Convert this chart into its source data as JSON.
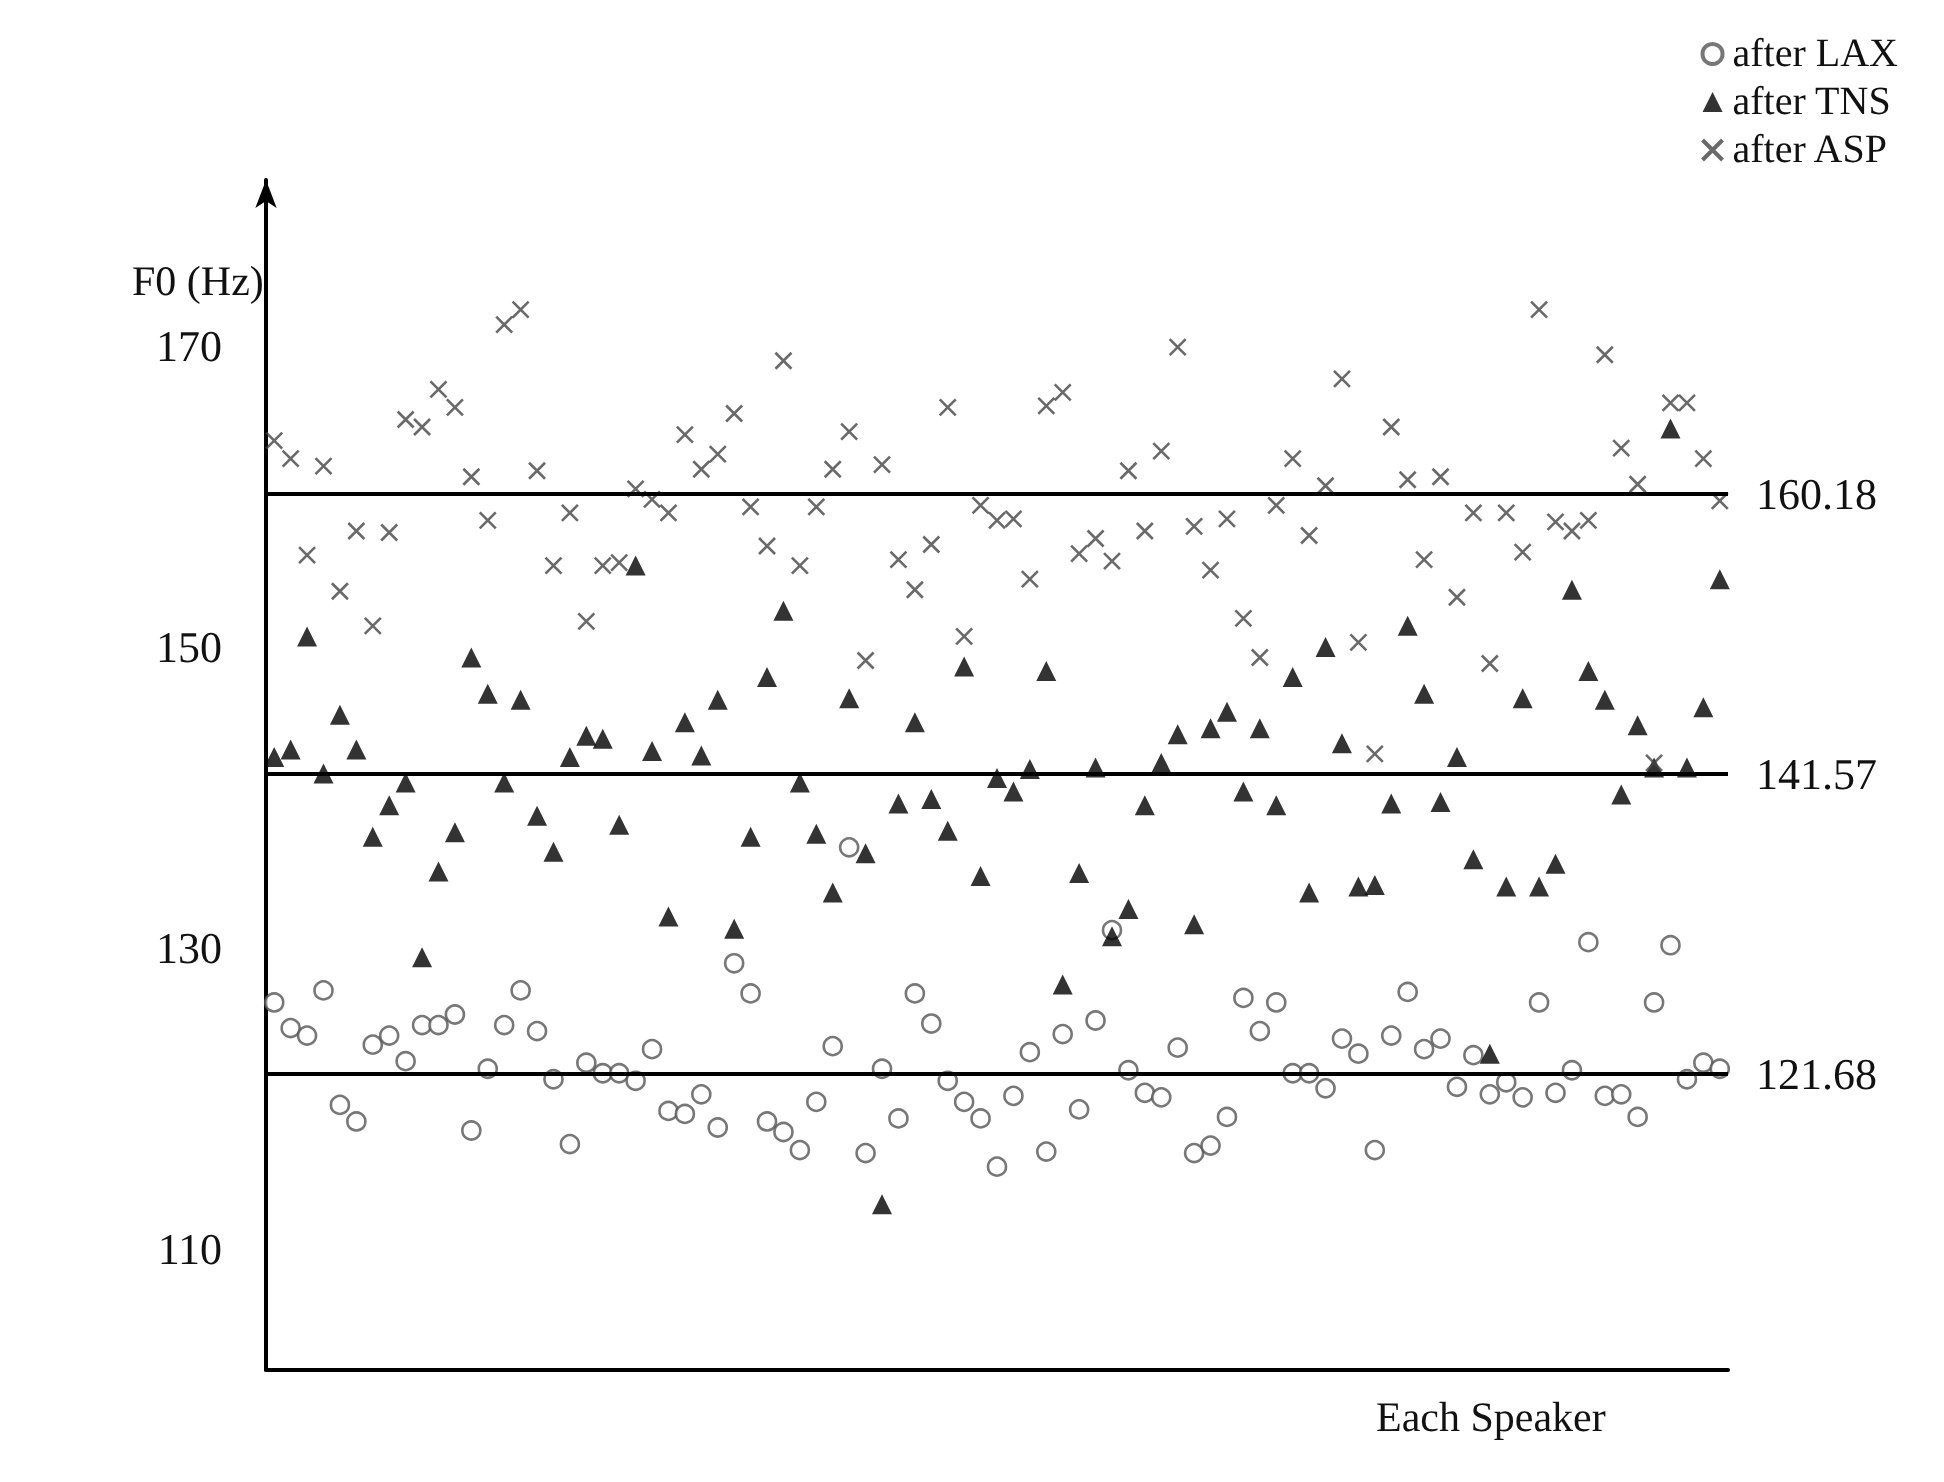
{
  "chart_data": {
    "type": "scatter",
    "xlabel": "Each Speaker",
    "ylabel": "F0 (Hz)",
    "categories": [
      null,
      null,
      null,
      null,
      null,
      null,
      null,
      null,
      null,
      null,
      null,
      null,
      null,
      null,
      null,
      null,
      null,
      null,
      null,
      null,
      null,
      null,
      null,
      null,
      null,
      null,
      null,
      null,
      null,
      null,
      null,
      null,
      null,
      null,
      null,
      null,
      null,
      null,
      null,
      null,
      null,
      null,
      null,
      null,
      null,
      null,
      null,
      null,
      null,
      null,
      null,
      null,
      null,
      null,
      null,
      null,
      null,
      null,
      null,
      null,
      null,
      null,
      null,
      null,
      null,
      null,
      null,
      null,
      null,
      null,
      null,
      null,
      null,
      null,
      null,
      null,
      null,
      null,
      null,
      null,
      null,
      null,
      null,
      null,
      null,
      null,
      null,
      null,
      null
    ],
    "series": [
      {
        "name": "after LAX",
        "color": "#555555",
        "marker": "circle",
        "values": [
          126.4,
          124.7,
          124.2,
          127.2,
          119.6,
          118.5,
          123.6,
          124.2,
          122.5,
          124.9,
          124.9,
          125.6,
          117.9,
          122.0,
          124.9,
          127.2,
          124.5,
          121.3,
          117.0,
          122.4,
          121.7,
          121.7,
          121.2,
          123.3,
          119.2,
          119.0,
          120.3,
          118.1,
          129.0,
          127.0,
          118.5,
          117.8,
          116.6,
          119.8,
          123.5,
          136.7,
          116.4,
          122.0,
          118.7,
          127.0,
          125.0,
          121.2,
          119.8,
          118.7,
          115.5,
          120.2,
          123.1,
          116.5,
          124.3,
          119.3,
          125.2,
          131.2,
          121.9,
          120.4,
          120.1,
          123.4,
          116.4,
          116.9,
          118.8,
          126.7,
          124.5,
          126.4,
          121.7,
          121.7,
          120.7,
          124.0,
          123.0,
          116.6,
          124.2,
          127.1,
          123.3,
          124.0,
          120.8,
          122.9,
          120.3,
          121.1,
          120.1,
          126.4,
          120.4,
          121.9,
          130.4,
          120.2,
          120.3,
          118.8,
          126.4,
          130.2,
          121.3,
          122.4,
          122.0
        ]
      },
      {
        "name": "after TNS",
        "color": "#000000",
        "marker": "triangle",
        "values": [
          142.7,
          143.2,
          150.7,
          141.6,
          145.5,
          143.2,
          137.4,
          139.5,
          141.0,
          129.4,
          135.1,
          137.7,
          149.3,
          146.9,
          141.0,
          146.5,
          138.8,
          136.4,
          142.7,
          144.1,
          143.9,
          138.2,
          155.4,
          143.1,
          132.1,
          145.0,
          142.8,
          146.5,
          131.3,
          137.4,
          148.0,
          152.4,
          141.0,
          137.6,
          133.7,
          146.6,
          136.3,
          113.0,
          139.6,
          145.0,
          139.9,
          137.8,
          148.7,
          134.8,
          141.3,
          140.4,
          141.9,
          148.4,
          127.6,
          135.0,
          142.0,
          130.8,
          132.6,
          139.5,
          142.3,
          144.2,
          131.6,
          144.6,
          145.7,
          140.4,
          144.6,
          139.5,
          148.0,
          133.7,
          150.0,
          143.6,
          134.1,
          134.2,
          139.6,
          151.4,
          146.9,
          139.7,
          142.7,
          135.9,
          123.0,
          134.1,
          146.6,
          134.1,
          135.6,
          153.8,
          148.4,
          146.5,
          140.2,
          144.8,
          142.0,
          164.5,
          142.0,
          146.0,
          154.5
        ]
      },
      {
        "name": "after ASP",
        "color": "#444444",
        "marker": "cross",
        "values": [
          163.7,
          162.5,
          156.1,
          162.0,
          153.7,
          157.7,
          151.4,
          157.6,
          165.1,
          164.6,
          167.1,
          165.9,
          161.3,
          158.4,
          171.4,
          172.4,
          161.7,
          155.4,
          158.9,
          151.7,
          155.4,
          155.6,
          160.5,
          159.8,
          158.9,
          164.1,
          161.8,
          162.8,
          165.5,
          159.3,
          156.7,
          169.0,
          155.4,
          159.3,
          161.8,
          164.3,
          149.1,
          162.1,
          155.8,
          153.8,
          156.8,
          165.9,
          150.7,
          159.4,
          158.4,
          158.5,
          154.5,
          166.0,
          166.9,
          156.2,
          157.2,
          155.7,
          161.7,
          157.7,
          163.0,
          169.9,
          158.0,
          155.1,
          158.5,
          151.9,
          149.3,
          159.4,
          162.5,
          157.4,
          160.7,
          167.8,
          150.3,
          142.9,
          164.6,
          161.1,
          155.8,
          161.3,
          153.3,
          158.9,
          148.9,
          158.9,
          156.3,
          172.4,
          158.3,
          157.7,
          158.4,
          169.4,
          163.2,
          160.8,
          142.3,
          166.2,
          166.2,
          162.5,
          159.7
        ]
      }
    ],
    "ylim": [
      102,
      181
    ],
    "yticks": [
      110,
      130,
      150,
      170
    ],
    "tick_labels": "y",
    "ref_lines": [
      {
        "axis": "y",
        "value": 160.18,
        "label": "160.18"
      },
      {
        "axis": "y",
        "value": 141.57,
        "label": "141.57"
      },
      {
        "axis": "y",
        "value": 121.68,
        "label": "121.68"
      }
    ],
    "legend": "top right"
  }
}
